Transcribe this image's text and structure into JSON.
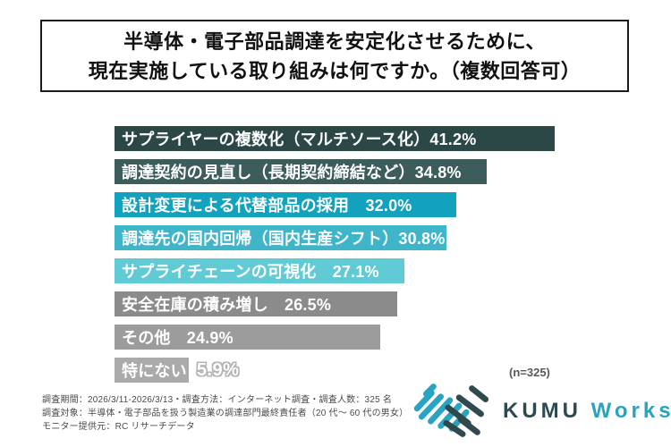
{
  "title": {
    "line1": "半導体・電子部品調達を安定化させるために、",
    "line2": "現在実施している取り組みは何ですか。（複数回答可）"
  },
  "chart_data": {
    "type": "bar",
    "orientation": "horizontal",
    "title": "半導体・電子部品調達を安定化させるために、現在実施している取り組みは何ですか。（複数回答可）",
    "categories": [
      "サプライヤーの複数化（マルチソース化）",
      "調達契約の見直し（長期契約締結など）",
      "設計変更による代替部品の採用",
      "調達先の国内回帰（国内生産シフト）",
      "サプライチェーンの可視化",
      "安全在庫の積み増し",
      "その他",
      "特にない"
    ],
    "values": [
      41.2,
      34.8,
      32.0,
      30.8,
      27.1,
      26.5,
      24.9,
      5.9
    ],
    "value_labels": [
      "41.2%",
      "34.8%",
      "32.0%",
      "30.8%",
      "27.1%",
      "26.5%",
      "24.9%",
      "5.9%"
    ],
    "unit": "%",
    "xlim": [
      0,
      45
    ],
    "grid": false,
    "legend": false,
    "sample_size_note": "(n=325)",
    "bars": [
      {
        "text_inside": "サプライヤーの複数化（マルチソース化）41.2%",
        "text_outside": "",
        "color": "#2b4846"
      },
      {
        "text_inside": "調達契約の見直し（長期契約締結など）34.8%",
        "text_outside": "",
        "color": "#3c5d5c"
      },
      {
        "text_inside": "設計変更による代替部品の採用　32.0%",
        "text_outside": "",
        "color": "#13a2bd"
      },
      {
        "text_inside": "調達先の国内回帰（国内生産シフト）30.8%",
        "text_outside": "",
        "color": "#3eb5c9"
      },
      {
        "text_inside": "サプライチェーンの可視化　27.1%",
        "text_outside": "",
        "color": "#60cbd5"
      },
      {
        "text_inside": "安全在庫の積み増し　26.5%",
        "text_outside": "",
        "color": "#8b8b8b"
      },
      {
        "text_inside": "その他　24.9%",
        "text_outside": "",
        "color": "#9c9c9c"
      },
      {
        "text_inside": "特にない",
        "text_outside": "5.9%",
        "color": "#aaaaaa"
      }
    ]
  },
  "footer": {
    "lines": [
      "調査期間：2026/3/11-2026/3/13・調査方法：インターネット調査・調査人数：325 名",
      "調査対象：半導体・電子部品を扱う製造業の調達部門最終責任者（20 代〜 60 代の男女）",
      "モニター提供元：RC リサーチデータ"
    ]
  },
  "logo": {
    "text_primary": "KUMU ",
    "text_secondary": "Works",
    "color_primary": "#2e4a4e",
    "color_secondary": "#2aa3c0",
    "icon": "handshake-icon"
  }
}
